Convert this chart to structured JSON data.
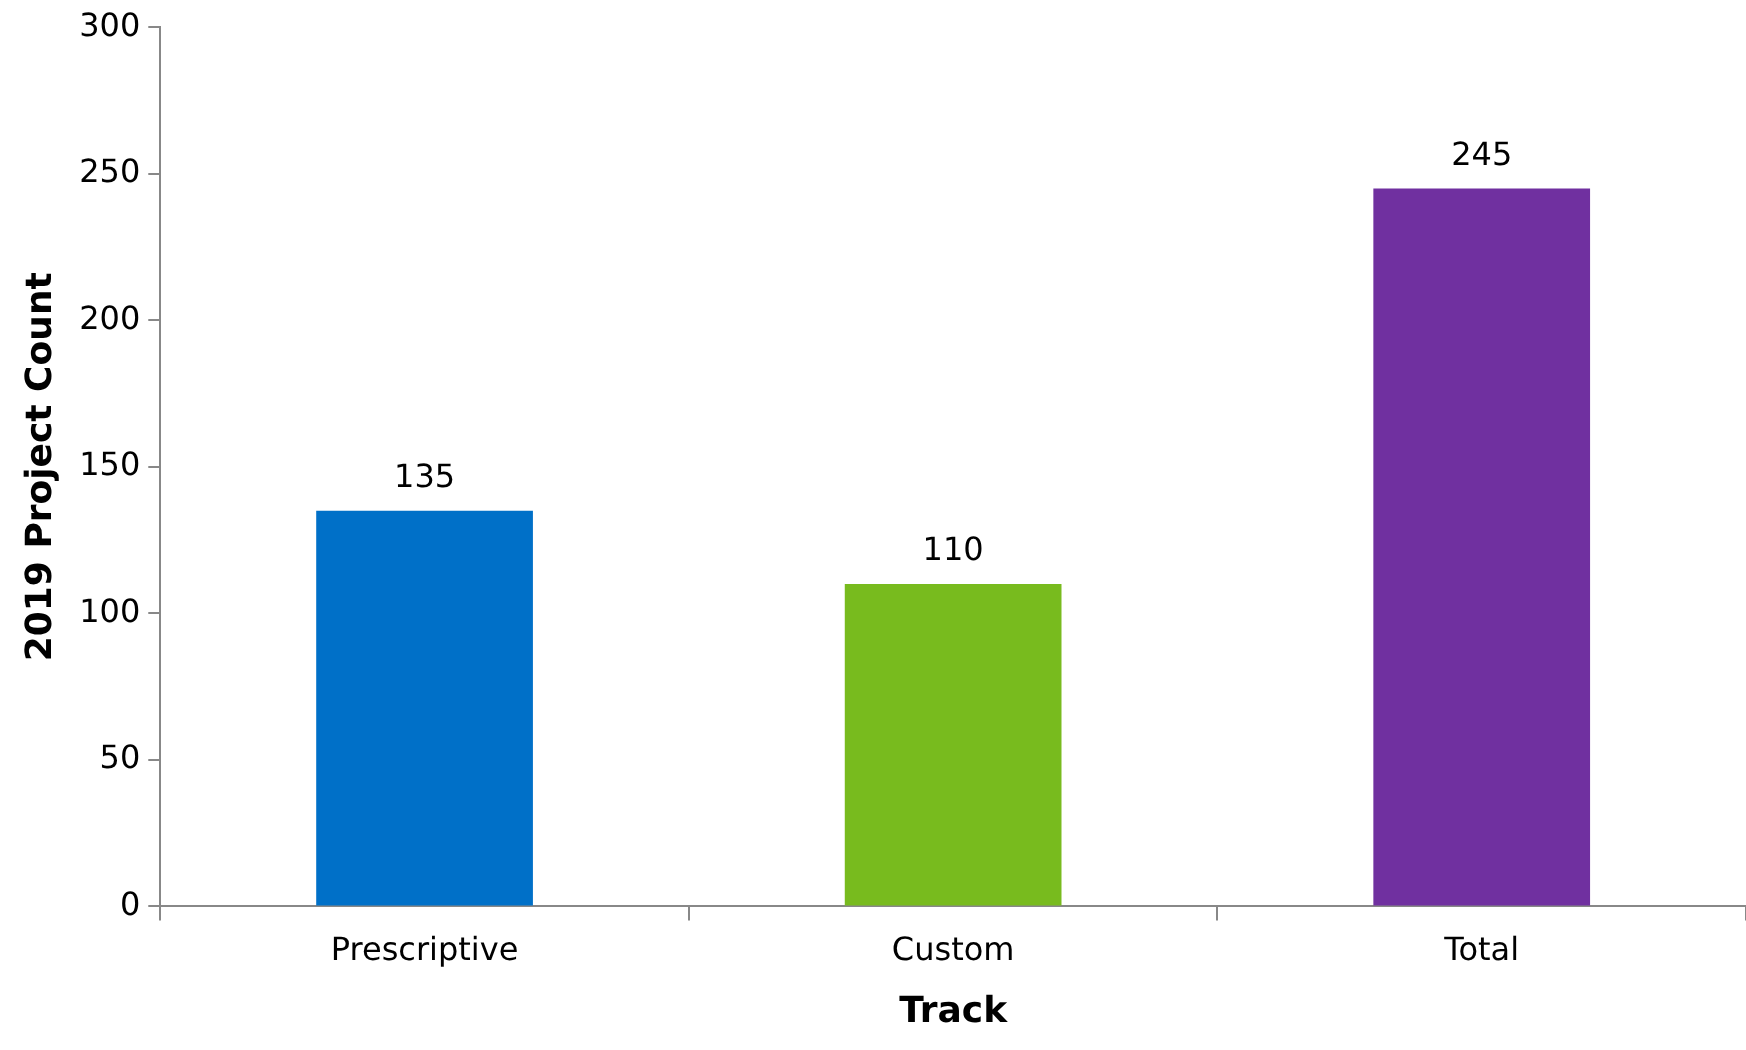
{
  "chart_data": {
    "type": "bar",
    "xlabel": "Track",
    "ylabel": "2019 Project Count",
    "categories": [
      "Prescriptive",
      "Custom",
      "Total"
    ],
    "values": [
      135,
      110,
      245
    ],
    "colors": [
      "#0070c8",
      "#78bb1e",
      "#7030a0"
    ],
    "ylim": [
      0,
      300
    ],
    "yticks": [
      0,
      50,
      100,
      150,
      200,
      250,
      300
    ],
    "grid": false,
    "legend": false,
    "data_labels": true
  }
}
